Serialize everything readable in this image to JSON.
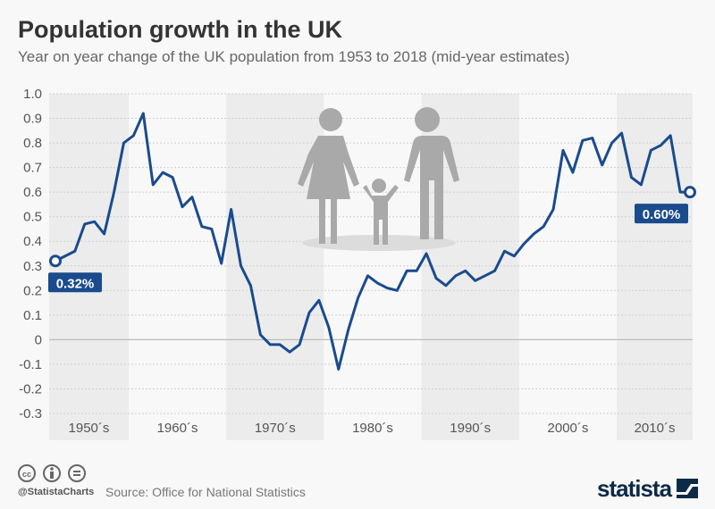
{
  "chart_data": {
    "type": "line",
    "title": "Population growth in the UK",
    "subtitle": "Year on year change of the UK population from 1953 to 2018 (mid-year estimates)",
    "ylim": [
      -0.3,
      1.0
    ],
    "yticks": [
      "1.0",
      "0.9",
      "0.8",
      "0.7",
      "0.6",
      "0.5",
      "0.4",
      "0.3",
      "0.2",
      "0.1",
      "0",
      "-0.1",
      "-0.2",
      "-0.3"
    ],
    "decade_labels": [
      "1950´s",
      "1960´s",
      "1970´s",
      "1980´s",
      "1990´s",
      "2000´s",
      "2010´s"
    ],
    "grid": true,
    "line_color": "#1a4b8c",
    "x": [
      1953,
      1954,
      1955,
      1956,
      1957,
      1958,
      1959,
      1960,
      1961,
      1962,
      1963,
      1964,
      1965,
      1966,
      1967,
      1968,
      1969,
      1970,
      1971,
      1972,
      1973,
      1974,
      1975,
      1976,
      1977,
      1978,
      1979,
      1980,
      1981,
      1982,
      1983,
      1984,
      1985,
      1986,
      1987,
      1988,
      1989,
      1990,
      1991,
      1992,
      1993,
      1994,
      1995,
      1996,
      1997,
      1998,
      1999,
      2000,
      2001,
      2002,
      2003,
      2004,
      2005,
      2006,
      2007,
      2008,
      2009,
      2010,
      2011,
      2012,
      2013,
      2014,
      2015,
      2016,
      2017,
      2018
    ],
    "values": [
      0.32,
      0.34,
      0.36,
      0.47,
      0.48,
      0.43,
      0.6,
      0.8,
      0.83,
      0.92,
      0.63,
      0.68,
      0.66,
      0.54,
      0.58,
      0.46,
      0.45,
      0.31,
      0.53,
      0.3,
      0.22,
      0.02,
      -0.02,
      -0.02,
      -0.05,
      -0.02,
      0.11,
      0.16,
      0.05,
      -0.12,
      0.04,
      0.17,
      0.26,
      0.23,
      0.21,
      0.2,
      0.28,
      0.28,
      0.35,
      0.25,
      0.22,
      0.26,
      0.28,
      0.24,
      0.26,
      0.28,
      0.36,
      0.34,
      0.39,
      0.43,
      0.46,
      0.53,
      0.77,
      0.68,
      0.81,
      0.82,
      0.71,
      0.8,
      0.84,
      0.66,
      0.63,
      0.77,
      0.79,
      0.83,
      0.6,
      0.6
    ],
    "annotations": [
      "0.32%",
      "0.60%"
    ]
  },
  "footer": {
    "handle": "@StatistaCharts",
    "source": "Source: Office for National Statistics",
    "logo": "statista"
  },
  "icons": [
    "creative-commons-icon",
    "attribution-icon",
    "no-derivatives-icon",
    "family-illustration"
  ]
}
